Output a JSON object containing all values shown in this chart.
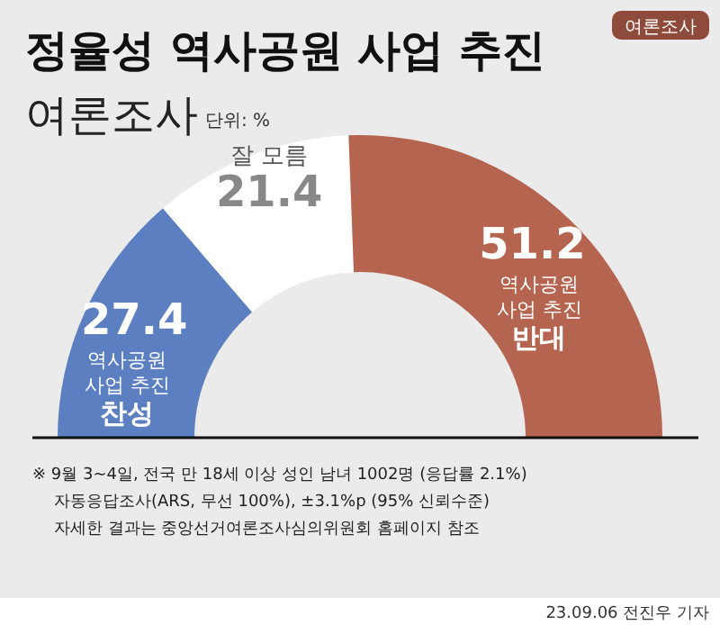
{
  "chart_data": {
    "type": "donut",
    "title": "정율성 역사공원 사업 추진",
    "subtitle": "여론조사",
    "categories": [
      "역사공원 사업 추진 찬성",
      "잘 모름",
      "역사공원 사업 추진 반대"
    ],
    "values": [
      27.4,
      21.4,
      51.2
    ],
    "colors": [
      "#5b7fc0",
      "#ffffff",
      "#b5654f"
    ],
    "data_labels": true,
    "annotations": [
      "단위: %",
      "여론조사",
      "※ 9월 3~4일, 전국 만 18세 이상 성인 남녀 1002명 (응답률 2.1%)",
      "자동응답조사(ARS, 무선 100%), ±3.1%p (95% 신뢰수준)",
      "자세한 결과는 중앙선거여론조사심의위원회 홈페이지 참조",
      "23.09.06 전진우 기자"
    ]
  }
}
